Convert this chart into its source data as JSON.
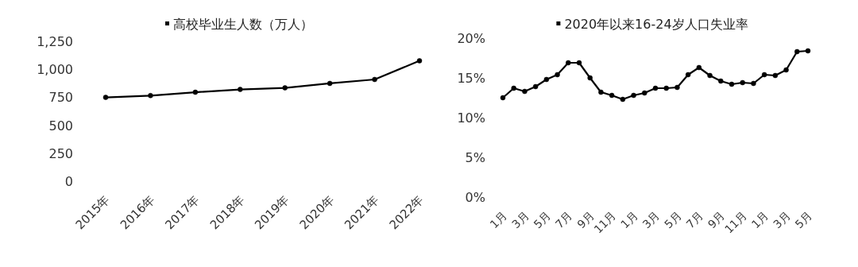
{
  "chart_data": [
    {
      "type": "line",
      "categories": [
        "2015年",
        "2016年",
        "2017年",
        "2018年",
        "2019年",
        "2020年",
        "2021年",
        "2022年"
      ],
      "series": [
        {
          "name": "高校毕业生人数（万人）",
          "color": "#000000",
          "values": [
            749,
            765,
            795,
            820,
            834,
            874,
            909,
            1076
          ]
        }
      ],
      "ylim": [
        0,
        1250
      ],
      "yticks": [
        0,
        250,
        500,
        750,
        {
          "value": 1000,
          "label": "1,000"
        },
        {
          "value": 1250,
          "label": "1,250"
        }
      ],
      "legend": "top",
      "marker": "circle",
      "line_style": "solid",
      "grid": false
    },
    {
      "type": "line",
      "categories": [
        "1月",
        null,
        "3月",
        null,
        "5月",
        null,
        "7月",
        null,
        "9月",
        null,
        "11月",
        null,
        "1月",
        null,
        "3月",
        null,
        "5月",
        null,
        "7月",
        null,
        "9月",
        null,
        "11月",
        null,
        "1月",
        null,
        "3月",
        null,
        "5月"
      ],
      "series": [
        {
          "name": "2020年以来16-24岁人口失业率",
          "color": "#000000",
          "values": [
            12.5,
            13.7,
            13.3,
            13.9,
            14.8,
            15.4,
            16.9,
            16.9,
            15.0,
            13.2,
            12.8,
            12.3,
            12.8,
            13.1,
            13.7,
            13.7,
            13.8,
            15.4,
            16.3,
            15.3,
            14.6,
            14.2,
            14.4,
            14.3,
            15.4,
            15.3,
            16.0,
            18.3,
            18.4
          ]
        }
      ],
      "ylim": [
        0,
        20
      ],
      "yticks": [
        {
          "value": 0,
          "label": "0%"
        },
        {
          "value": 5,
          "label": "5%"
        },
        {
          "value": 10,
          "label": "10%"
        },
        {
          "value": 15,
          "label": "15%"
        },
        {
          "value": 20,
          "label": "20%"
        }
      ],
      "legend": "top",
      "marker": "circle",
      "line_style": "solid",
      "grid": false
    }
  ]
}
